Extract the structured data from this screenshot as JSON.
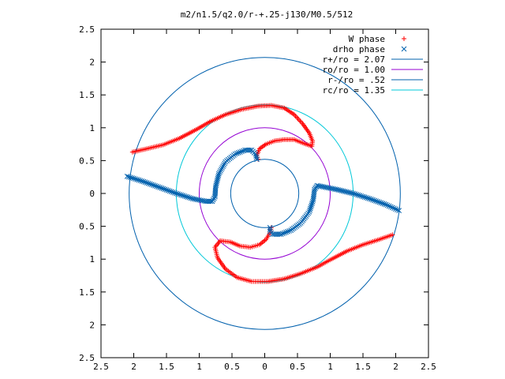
{
  "chart_data": {
    "type": "scatter",
    "title": "m2/n1.5/q2.0/r-+.25-j130/M0.5/512",
    "xlabel": "",
    "ylabel": "",
    "xlim": [
      -2.5,
      2.5
    ],
    "ylim": [
      -2.5,
      2.5
    ],
    "x_tick_values": [
      -2.5,
      -2,
      -1.5,
      -1,
      -0.5,
      0,
      0.5,
      1,
      1.5,
      2,
      2.5
    ],
    "x_tick_labels": [
      "2.5",
      "2",
      "1.5",
      "1",
      "0.5",
      "0",
      "0.5",
      "1",
      "1.5",
      "2",
      "2.5"
    ],
    "y_tick_values": [
      2.5,
      2,
      1.5,
      1,
      0.5,
      0,
      -0.5,
      -1,
      -1.5,
      -2,
      -2.5
    ],
    "y_tick_labels": [
      "2.5",
      "2",
      "1.5",
      "1",
      "0.5",
      "0",
      "0.5",
      "1",
      "1.5",
      "2",
      "2.5"
    ],
    "grid": false,
    "legend_position": "top-right",
    "legend": [
      {
        "label": "W phase",
        "kind": "plus",
        "color": "#ff0000"
      },
      {
        "label": "drho phase",
        "kind": "cross",
        "color": "#0060ad"
      },
      {
        "label": "r+/ro = 2.07",
        "kind": "line",
        "color": "#0060ad"
      },
      {
        "label": "ro/ro = 1.00",
        "kind": "line",
        "color": "#9400d3"
      },
      {
        "label": "r-/ro = .52",
        "kind": "line",
        "color": "#0060ad"
      },
      {
        "label": "rc/ro = 1.35",
        "kind": "line",
        "color": "#00c8d8"
      }
    ],
    "circles": [
      {
        "name": "r+/ro",
        "radius": 2.07,
        "color": "#0060ad"
      },
      {
        "name": "ro/ro",
        "radius": 1.0,
        "color": "#9400d3"
      },
      {
        "name": "r-/ro",
        "radius": 0.52,
        "color": "#0060ad"
      },
      {
        "name": "rc/ro",
        "radius": 1.35,
        "color": "#00c8d8"
      }
    ],
    "series": [
      {
        "name": "W phase",
        "marker": "plus",
        "color": "#ff0000",
        "segments": [
          [
            [
              -2.02,
              0.63
            ],
            [
              -1.8,
              0.68
            ],
            [
              -1.55,
              0.74
            ],
            [
              -1.3,
              0.84
            ],
            [
              -1.05,
              0.97
            ],
            [
              -0.82,
              1.1
            ],
            [
              -0.6,
              1.2
            ],
            [
              -0.35,
              1.28
            ],
            [
              -0.1,
              1.33
            ],
            [
              0.1,
              1.34
            ],
            [
              0.3,
              1.3
            ],
            [
              0.45,
              1.2
            ],
            [
              0.58,
              1.06
            ],
            [
              0.68,
              0.92
            ],
            [
              0.73,
              0.8
            ],
            [
              0.72,
              0.72
            ],
            [
              0.6,
              0.76
            ],
            [
              0.45,
              0.82
            ],
            [
              0.3,
              0.82
            ],
            [
              0.15,
              0.8
            ],
            [
              0.02,
              0.75
            ],
            [
              -0.08,
              0.68
            ],
            [
              -0.12,
              0.58
            ],
            [
              -0.1,
              0.52
            ]
          ],
          [
            [
              1.95,
              -0.63
            ],
            [
              1.75,
              -0.7
            ],
            [
              1.5,
              -0.78
            ],
            [
              1.25,
              -0.88
            ],
            [
              1.02,
              -1.0
            ],
            [
              0.8,
              -1.12
            ],
            [
              0.55,
              -1.22
            ],
            [
              0.3,
              -1.3
            ],
            [
              0.05,
              -1.34
            ],
            [
              -0.2,
              -1.34
            ],
            [
              -0.42,
              -1.28
            ],
            [
              -0.6,
              -1.15
            ],
            [
              -0.72,
              -0.98
            ],
            [
              -0.76,
              -0.82
            ],
            [
              -0.68,
              -0.72
            ],
            [
              -0.52,
              -0.74
            ],
            [
              -0.38,
              -0.8
            ],
            [
              -0.22,
              -0.82
            ],
            [
              -0.08,
              -0.78
            ],
            [
              0.02,
              -0.7
            ],
            [
              0.08,
              -0.6
            ],
            [
              0.1,
              -0.52
            ]
          ]
        ]
      },
      {
        "name": "drho phase",
        "marker": "cross",
        "color": "#0060ad",
        "segments": [
          [
            [
              -2.1,
              0.26
            ],
            [
              -1.85,
              0.18
            ],
            [
              -1.6,
              0.09
            ],
            [
              -1.35,
              0.0
            ],
            [
              -1.1,
              -0.08
            ],
            [
              -0.9,
              -0.12
            ],
            [
              -0.8,
              -0.12
            ],
            [
              -0.76,
              -0.05
            ],
            [
              -0.75,
              0.1
            ],
            [
              -0.7,
              0.3
            ],
            [
              -0.6,
              0.48
            ],
            [
              -0.45,
              0.6
            ],
            [
              -0.3,
              0.66
            ],
            [
              -0.2,
              0.66
            ],
            [
              -0.14,
              0.6
            ],
            [
              -0.12,
              0.52
            ]
          ],
          [
            [
              2.05,
              -0.26
            ],
            [
              1.85,
              -0.17
            ],
            [
              1.6,
              -0.08
            ],
            [
              1.35,
              0.0
            ],
            [
              1.1,
              0.06
            ],
            [
              0.9,
              0.1
            ],
            [
              0.8,
              0.12
            ],
            [
              0.76,
              0.06
            ],
            [
              0.74,
              -0.1
            ],
            [
              0.68,
              -0.28
            ],
            [
              0.55,
              -0.45
            ],
            [
              0.4,
              -0.56
            ],
            [
              0.25,
              -0.62
            ],
            [
              0.12,
              -0.62
            ],
            [
              0.08,
              -0.58
            ],
            [
              0.08,
              -0.52
            ]
          ]
        ]
      }
    ]
  }
}
